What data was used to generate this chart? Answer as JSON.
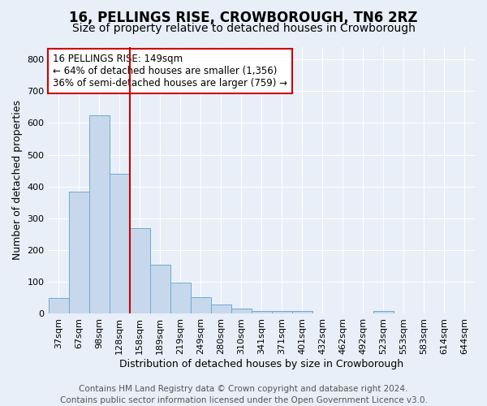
{
  "title1": "16, PELLINGS RISE, CROWBOROUGH, TN6 2RZ",
  "title2": "Size of property relative to detached houses in Crowborough",
  "xlabel": "Distribution of detached houses by size in Crowborough",
  "ylabel": "Number of detached properties",
  "categories": [
    "37sqm",
    "67sqm",
    "98sqm",
    "128sqm",
    "158sqm",
    "189sqm",
    "219sqm",
    "249sqm",
    "280sqm",
    "310sqm",
    "341sqm",
    "371sqm",
    "401sqm",
    "432sqm",
    "462sqm",
    "492sqm",
    "523sqm",
    "553sqm",
    "583sqm",
    "614sqm",
    "644sqm"
  ],
  "values": [
    50,
    385,
    625,
    440,
    270,
    155,
    98,
    52,
    30,
    17,
    10,
    10,
    10,
    0,
    0,
    0,
    10,
    0,
    0,
    0,
    0
  ],
  "bar_color": "#c8d8ec",
  "bar_edge_color": "#6aabcf",
  "vline_x": 3.5,
  "vline_color": "#cc0000",
  "annotation_text": "16 PELLINGS RISE: 149sqm\n← 64% of detached houses are smaller (1,356)\n36% of semi-detached houses are larger (759) →",
  "annotation_box_color": "#ffffff",
  "annotation_box_edge_color": "#cc0000",
  "ylim": [
    0,
    840
  ],
  "yticks": [
    0,
    100,
    200,
    300,
    400,
    500,
    600,
    700,
    800
  ],
  "footer1": "Contains HM Land Registry data © Crown copyright and database right 2024.",
  "footer2": "Contains public sector information licensed under the Open Government Licence v3.0.",
  "background_color": "#e8eff8",
  "grid_color": "#ffffff",
  "title1_fontsize": 12,
  "title2_fontsize": 10,
  "annotation_fontsize": 8.5,
  "footer_fontsize": 7.5,
  "axis_label_fontsize": 9,
  "tick_fontsize": 8
}
